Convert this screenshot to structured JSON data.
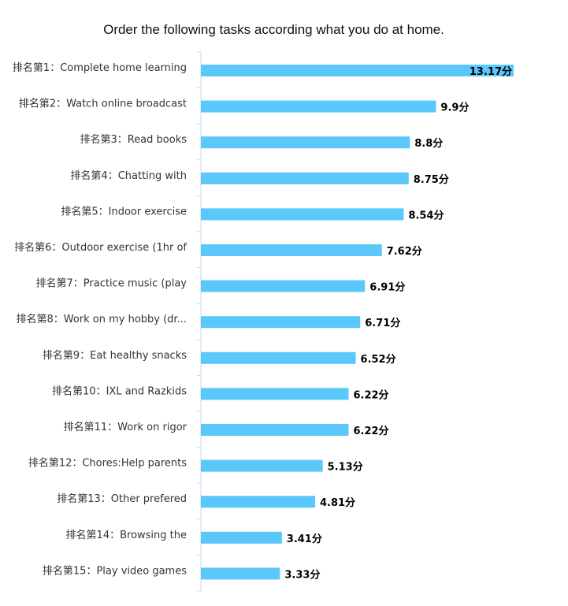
{
  "chart_data": {
    "type": "bar",
    "orientation": "horizontal",
    "title": "Order the following tasks according what you do at home.",
    "value_suffix": "分",
    "bar_color": "#5ac8fa",
    "axis_color": "#c8d4ef",
    "categories": [
      "排名第1：Complete home learning",
      "排名第2：Watch online broadcast",
      "排名第3：Read books",
      "排名第4：Chatting with",
      "排名第5：Indoor exercise",
      "排名第6：Outdoor exercise (1hr of",
      "排名第7：Practice music (play",
      "排名第8：Work on my hobby (dr...",
      "排名第9：Eat healthy snacks",
      "排名第10：IXL and Razkids",
      "排名第11：Work on rigor",
      "排名第12：Chores:Help parents",
      "排名第13：Other prefered",
      "排名第14：Browsing the",
      "排名第15：Play video games"
    ],
    "values": [
      13.17,
      9.9,
      8.8,
      8.75,
      8.54,
      7.62,
      6.91,
      6.71,
      6.52,
      6.22,
      6.22,
      5.13,
      4.81,
      3.41,
      3.33
    ],
    "value_labels": [
      "13.17分",
      "9.9分",
      "8.8分",
      "8.75分",
      "8.54分",
      "7.62分",
      "6.91分",
      "6.71分",
      "6.52分",
      "6.22分",
      "6.22分",
      "5.13分",
      "4.81分",
      "3.41分",
      "3.33分"
    ],
    "xlim": [
      0,
      13.17
    ],
    "grid": false,
    "legend": "none"
  }
}
